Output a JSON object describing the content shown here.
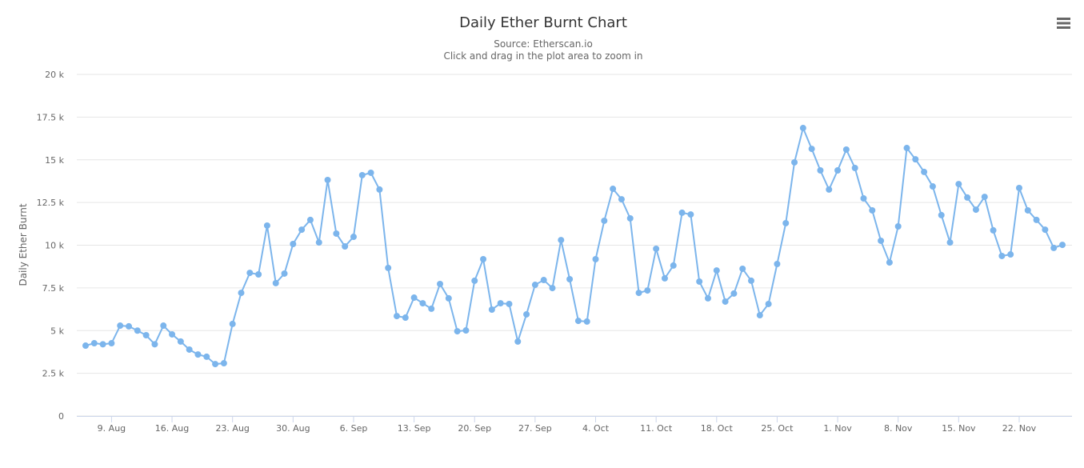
{
  "chart_data": {
    "type": "line",
    "title": "Daily Ether Burnt Chart",
    "subtitle": [
      "Source: Etherscan.io",
      "Click and drag in the plot area to zoom in"
    ],
    "y_label": "Daily Ether Burnt",
    "color": "#7cb5ec",
    "grid": true,
    "categories": [
      null,
      null,
      null,
      "9. Aug",
      null,
      null,
      null,
      null,
      null,
      null,
      "16. Aug",
      null,
      null,
      null,
      null,
      null,
      null,
      "23. Aug",
      null,
      null,
      null,
      null,
      null,
      null,
      "30. Aug",
      null,
      null,
      null,
      null,
      null,
      null,
      "6. Sep",
      null,
      null,
      null,
      null,
      null,
      null,
      "13. Sep",
      null,
      null,
      null,
      null,
      null,
      null,
      "20. Sep",
      null,
      null,
      null,
      null,
      null,
      null,
      "27. Sep",
      null,
      null,
      null,
      null,
      null,
      null,
      "4. Oct",
      null,
      null,
      null,
      null,
      null,
      null,
      "11. Oct",
      null,
      null,
      null,
      null,
      null,
      null,
      "18. Oct",
      null,
      null,
      null,
      null,
      null,
      null,
      "25. Oct",
      null,
      null,
      null,
      null,
      null,
      null,
      "1. Nov",
      null,
      null,
      null,
      null,
      null,
      null,
      "8. Nov",
      null,
      null,
      null,
      null,
      null,
      null,
      "15. Nov",
      null,
      null,
      null,
      null,
      null,
      null,
      "22. Nov",
      null,
      null,
      null,
      null,
      null
    ],
    "values": [
      4120,
      4260,
      4200,
      4260,
      5290,
      5250,
      5000,
      4730,
      4200,
      5290,
      4780,
      4360,
      3890,
      3600,
      3470,
      3040,
      3090,
      5390,
      7210,
      8380,
      8290,
      11150,
      7780,
      8340,
      10070,
      10910,
      11480,
      10160,
      13820,
      10680,
      9930,
      10490,
      14100,
      14240,
      13260,
      8670,
      5850,
      5760,
      6930,
      6600,
      6280,
      7730,
      6890,
      4960,
      5010,
      7920,
      9180,
      6230,
      6600,
      6560,
      4360,
      5950,
      7680,
      7960,
      7490,
      10300,
      8010,
      5570,
      5530,
      9180,
      11430,
      13300,
      12690,
      11570,
      7210,
      7350,
      9790,
      8060,
      8810,
      11900,
      11800,
      7870,
      6890,
      8520,
      6700,
      7170,
      8620,
      7920,
      5900,
      6560,
      8900,
      11290,
      14850,
      16860,
      15640,
      14380,
      13260,
      14380,
      15600,
      14520,
      12740,
      12040,
      10260,
      8990,
      11100,
      15690,
      15030,
      14290,
      13440,
      11760,
      10160,
      13580,
      12790,
      12080,
      12830,
      10870,
      9370,
      9460,
      13350,
      12040,
      11480,
      10910,
      9840,
      10020
    ],
    "ylim": [
      0,
      20000
    ],
    "yticks": [
      0,
      {
        "value": 2500,
        "label": "2.5 k"
      },
      {
        "value": 5000,
        "label": "5 k"
      },
      {
        "value": 7500,
        "label": "7.5 k"
      },
      {
        "value": 10000,
        "label": "10 k"
      },
      {
        "value": 12500,
        "label": "12.5 k"
      },
      {
        "value": 15000,
        "label": "15 k"
      },
      {
        "value": 17500,
        "label": "17.5 k"
      },
      {
        "value": 20000,
        "label": "20 k"
      }
    ]
  }
}
